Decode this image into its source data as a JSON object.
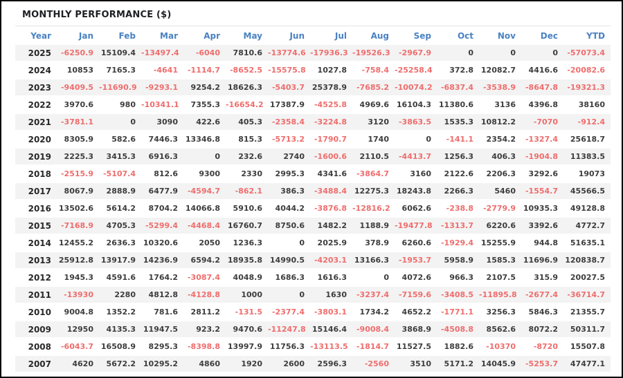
{
  "header": {
    "title": "MONTHLY PERFORMANCE ($)"
  },
  "colors": {
    "title_text": "#1d1f23",
    "column_header_text": "#4a82c3",
    "positive_value_text": "#3d3d3d",
    "negative_value_text": "#ef6d6d",
    "stripe_row_background": "#f3f3f3",
    "frame_border": "#000000"
  },
  "chart_data": {
    "type": "table",
    "title": "MONTHLY PERFORMANCE ($)",
    "columns": [
      "Year",
      "Jan",
      "Feb",
      "Mar",
      "Apr",
      "May",
      "Jun",
      "Jul",
      "Aug",
      "Sep",
      "Oct",
      "Nov",
      "Dec",
      "YTD"
    ],
    "rows": [
      {
        "year": "2025",
        "values": [
          -6250.9,
          15109.4,
          -13497.4,
          -6040,
          7810.6,
          -13774.6,
          -17936.3,
          -19526.3,
          -2967.9,
          0,
          0,
          0,
          -57073.4
        ]
      },
      {
        "year": "2024",
        "values": [
          10853,
          7165.3,
          -4641,
          -1114.7,
          -8652.5,
          -15575.8,
          1027.8,
          -758.4,
          -25258.4,
          372.8,
          12082.7,
          4416.6,
          -20082.6
        ]
      },
      {
        "year": "2023",
        "values": [
          -9409.5,
          -11690.9,
          -9293.1,
          9254.2,
          18626.3,
          -5403.7,
          25378.9,
          -7685.2,
          -10074.2,
          -6837.4,
          -3538.9,
          -8647.8,
          -19321.3
        ]
      },
      {
        "year": "2022",
        "values": [
          3970.6,
          980,
          -10341.1,
          7355.3,
          -16654.2,
          17387.9,
          -4525.8,
          4969.6,
          16104.3,
          11380.6,
          3136,
          4396.8,
          38160
        ]
      },
      {
        "year": "2021",
        "values": [
          -3781.1,
          0,
          3090,
          422.6,
          405.3,
          -2358.4,
          -3224.8,
          3120,
          -3863.5,
          1535.3,
          10812.2,
          -7070,
          -912.4
        ]
      },
      {
        "year": "2020",
        "values": [
          8305.9,
          582.6,
          7446.3,
          13346.8,
          815.3,
          -5713.2,
          -1790.7,
          1740,
          0,
          -141.1,
          2354.2,
          -1327.4,
          25618.7
        ]
      },
      {
        "year": "2019",
        "values": [
          2225.3,
          3415.3,
          6916.3,
          0,
          232.6,
          2740,
          -1600.6,
          2110.5,
          -4413.7,
          1256.3,
          406.3,
          -1904.8,
          11383.5
        ]
      },
      {
        "year": "2018",
        "values": [
          -2515.9,
          -5107.4,
          812.6,
          9300,
          2330,
          2995.3,
          4341.6,
          -3864.7,
          3160,
          2122.6,
          2206.3,
          3292.6,
          19073
        ]
      },
      {
        "year": "2017",
        "values": [
          8067.9,
          2888.9,
          6477.9,
          -4594.7,
          -862.1,
          386.3,
          -3488.4,
          12275.3,
          18243.8,
          2266.3,
          5460,
          -1554.7,
          45566.5
        ]
      },
      {
        "year": "2016",
        "values": [
          13502.6,
          5614.2,
          8704.2,
          14066.8,
          5910.6,
          4044.2,
          -3876.8,
          -12816.2,
          6062.6,
          -238.8,
          -2779.9,
          10935.3,
          49128.8
        ]
      },
      {
        "year": "2015",
        "values": [
          -7168.9,
          4705.3,
          -5299.4,
          -4468.4,
          16760.7,
          8750.6,
          1482.2,
          1188.9,
          -19477.8,
          -1313.7,
          6220.6,
          3392.6,
          4772.7
        ]
      },
      {
        "year": "2014",
        "values": [
          12455.2,
          2636.3,
          10320.6,
          2050,
          1236.3,
          0,
          2025.9,
          378.9,
          6260.6,
          -1929.4,
          15255.9,
          944.8,
          51635.1
        ]
      },
      {
        "year": "2013",
        "values": [
          25912.8,
          13917.9,
          14236.9,
          6594.2,
          18935.8,
          14990.5,
          -4203.1,
          13166.3,
          -1953.7,
          5958.9,
          1585.3,
          11696.9,
          120838.7
        ]
      },
      {
        "year": "2012",
        "values": [
          1945.3,
          4591.6,
          1764.2,
          -3087.4,
          4048.9,
          1686.3,
          1616.3,
          0,
          4072.6,
          966.3,
          2107.5,
          315.9,
          20027.5
        ]
      },
      {
        "year": "2011",
        "values": [
          -13930,
          2280,
          4812.8,
          -4128.8,
          1000,
          0,
          1630,
          -3237.4,
          -7159.6,
          -3408.5,
          -11895.8,
          -2677.4,
          -36714.7
        ]
      },
      {
        "year": "2010",
        "values": [
          9004.8,
          1352.2,
          781.6,
          2811.2,
          -131.5,
          -2377.4,
          -3803.1,
          1734.2,
          4652.2,
          -1771.1,
          3256.3,
          5846.3,
          21355.7
        ]
      },
      {
        "year": "2009",
        "values": [
          12950,
          4135.3,
          11947.5,
          923.2,
          9470.6,
          -11247.8,
          15146.4,
          -9008.4,
          3868.9,
          -4508.8,
          8562.6,
          8072.2,
          50311.7
        ]
      },
      {
        "year": "2008",
        "values": [
          -6043.7,
          16508.9,
          8295.3,
          -8398.8,
          13997.9,
          11756.3,
          -13113.5,
          -1814.7,
          11527.5,
          1882.6,
          -10370,
          -8720,
          15507.8
        ]
      },
      {
        "year": "2007",
        "values": [
          4620,
          5672.2,
          10295.2,
          4860,
          1920,
          2600,
          2596.3,
          -2560,
          3510,
          5171.2,
          14045.9,
          -5253.7,
          47477.1
        ]
      }
    ]
  }
}
